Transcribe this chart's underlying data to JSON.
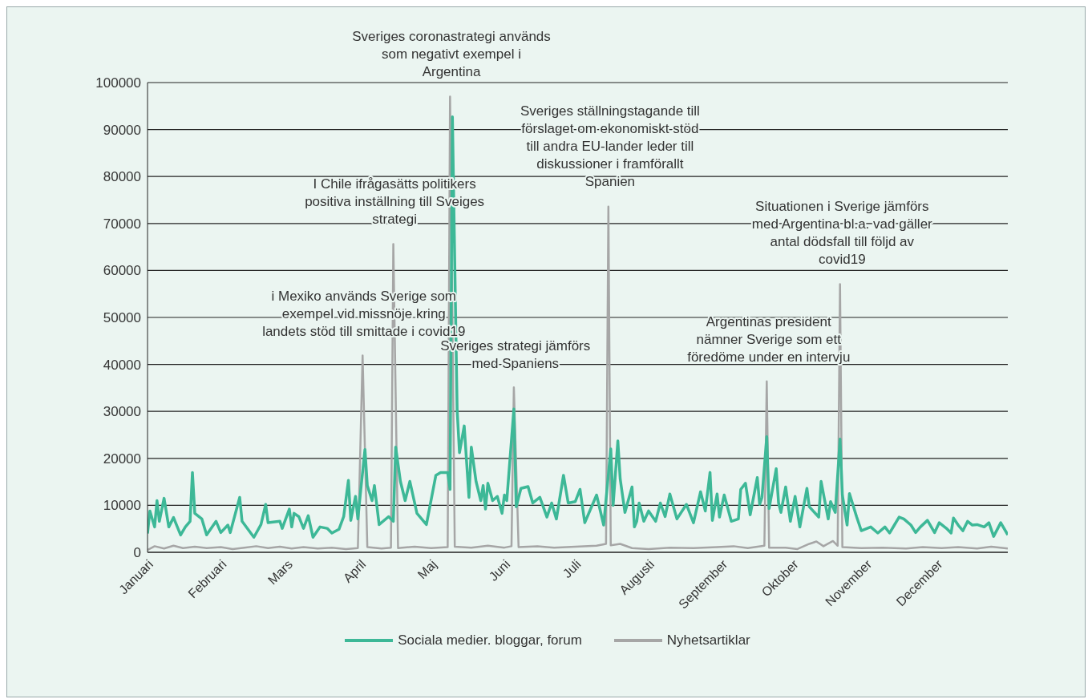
{
  "chart_data": {
    "type": "line",
    "xlim": [
      "--01-01",
      "--12-31"
    ],
    "xticks": [
      {
        "value": "--01-01",
        "label": "Januari"
      },
      {
        "value": "--02-01",
        "label": "Februari"
      },
      {
        "value": "--03-01",
        "label": "Mars"
      },
      {
        "value": "--04-01",
        "label": "April"
      },
      {
        "value": "--05-01",
        "label": "Maj"
      },
      {
        "value": "--06-01",
        "label": "Juni"
      },
      {
        "value": "--07-01",
        "label": "Juli"
      },
      {
        "value": "--08-01",
        "label": "Augusti"
      },
      {
        "value": "--09-01",
        "label": "September"
      },
      {
        "value": "--10-01",
        "label": "Oktober"
      },
      {
        "value": "--11-01",
        "label": "November"
      },
      {
        "value": "--12-01",
        "label": "December"
      }
    ],
    "ylim": [
      0,
      100000
    ],
    "yticks": [
      0,
      10000,
      20000,
      30000,
      40000,
      50000,
      60000,
      70000,
      80000,
      90000,
      100000
    ],
    "grid": "y",
    "legend": "bottom",
    "marker": "none",
    "line_style": "solid",
    "series": [
      {
        "name": "Sociala medier. bloggar, forum",
        "color": "#3db897",
        "x": [
          "--01-01",
          "--01-02",
          "--01-04",
          "--01-05",
          "--01-06",
          "--01-08",
          "--01-10",
          "--01-12",
          "--01-15",
          "--01-17",
          "--01-19",
          "--01-20",
          "--01-21",
          "--01-24",
          "--01-26",
          "--01-30",
          "--02-01",
          "--02-04",
          "--02-05",
          "--02-09",
          "--02-10",
          "--02-15",
          "--02-18",
          "--02-20",
          "--02-21",
          "--02-26",
          "--02-27",
          "--03-02",
          "--03-03",
          "--03-04",
          "--03-06",
          "--03-08",
          "--03-10",
          "--03-12",
          "--03-15",
          "--03-18",
          "--03-20",
          "--03-23",
          "--03-25",
          "--03-27",
          "--03-28",
          "--03-30",
          "--03-31",
          "--04-01",
          "--04-03",
          "--04-04",
          "--04-06",
          "--04-07",
          "--04-09",
          "--04-13",
          "--04-15",
          "--04-16",
          "--04-18",
          "--04-20",
          "--04-22",
          "--04-25",
          "--04-29",
          "--05-03",
          "--05-05",
          "--05-08",
          "--05-09",
          "--05-10",
          "--05-12",
          "--05-13",
          "--05-15",
          "--05-17",
          "--05-18",
          "--05-20",
          "--05-22",
          "--05-23",
          "--05-24",
          "--05-25",
          "--05-27",
          "--05-29",
          "--05-31",
          "--06-01",
          "--06-02",
          "--06-05",
          "--06-06",
          "--06-08",
          "--06-11",
          "--06-13",
          "--06-16",
          "--06-19",
          "--06-21",
          "--06-23",
          "--06-26",
          "--06-28",
          "--07-01",
          "--07-03",
          "--07-05",
          "--07-10",
          "--07-13",
          "--07-16",
          "--07-17",
          "--07-19",
          "--07-20",
          "--07-22",
          "--07-25",
          "--07-26",
          "--07-27",
          "--07-28",
          "--07-30",
          "--08-01",
          "--08-04",
          "--08-06",
          "--08-08",
          "--08-10",
          "--08-13",
          "--08-17",
          "--08-20",
          "--08-23",
          "--08-25",
          "--08-27",
          "--08-28",
          "--08-30",
          "--08-31",
          "--09-02",
          "--09-05",
          "--09-08",
          "--09-09",
          "--09-11",
          "--09-13",
          "--09-16",
          "--09-17",
          "--09-18",
          "--09-20",
          "--09-21",
          "--09-24",
          "--09-25",
          "--09-26",
          "--09-28",
          "--09-30",
          "--10-02",
          "--10-04",
          "--10-07",
          "--10-08",
          "--10-12",
          "--10-13",
          "--10-16",
          "--10-17",
          "--10-19",
          "--10-21",
          "--10-22",
          "--10-24",
          "--10-25",
          "--10-28",
          "--10-30",
          "--11-03",
          "--11-06",
          "--11-09",
          "--11-11",
          "--11-13",
          "--11-15",
          "--11-17",
          "--11-20",
          "--11-22",
          "--11-24",
          "--11-27",
          "--11-30",
          "--12-02",
          "--12-05",
          "--12-07",
          "--12-08",
          "--12-10",
          "--12-12",
          "--12-14",
          "--12-16",
          "--12-18",
          "--12-21",
          "--12-23",
          "--12-25",
          "--12-28",
          "--12-31"
        ],
        "values": [
          4000,
          8800,
          5400,
          11000,
          6600,
          11500,
          5400,
          7400,
          3700,
          5400,
          6600,
          17000,
          8300,
          7100,
          3700,
          6600,
          4200,
          5800,
          4200,
          11700,
          6600,
          3200,
          5900,
          10200,
          6300,
          6600,
          5100,
          9200,
          5400,
          8300,
          7600,
          5100,
          7800,
          3200,
          5400,
          5100,
          4100,
          4900,
          7600,
          15300,
          6800,
          11900,
          7100,
          12200,
          21900,
          14200,
          11000,
          14200,
          5900,
          7600,
          6600,
          22400,
          15100,
          11000,
          15100,
          8300,
          5900,
          16400,
          17000,
          17000,
          13400,
          92700,
          30300,
          21200,
          26900,
          11700,
          22400,
          15100,
          11000,
          14200,
          9200,
          14700,
          11000,
          11900,
          8300,
          12200,
          11000,
          30500,
          9700,
          13600,
          14000,
          10500,
          11700,
          7500,
          10500,
          7100,
          16400,
          10500,
          10800,
          13400,
          6300,
          12200,
          5800,
          22000,
          10000,
          23700,
          15600,
          8500,
          13900,
          5400,
          6600,
          10500,
          6600,
          8800,
          6600,
          10500,
          7600,
          12400,
          7100,
          10200,
          6300,
          12900,
          8800,
          17000,
          6800,
          12400,
          7500,
          12200,
          6600,
          7100,
          13400,
          14700,
          8000,
          15900,
          10200,
          11700,
          24600,
          9300,
          17800,
          10500,
          8500,
          13900,
          6600,
          11900,
          5400,
          13600,
          9700,
          7500,
          15100,
          7100,
          10800,
          8500,
          24100,
          12200,
          5800,
          12500,
          7600,
          4600,
          5400,
          4100,
          5400,
          4100,
          5800,
          7500,
          7100,
          5800,
          4200,
          5400,
          6800,
          4200,
          6300,
          5100,
          4100,
          7300,
          5800,
          4600,
          6600,
          5800,
          5900,
          5400,
          6300,
          3400,
          6300,
          3700
        ]
      },
      {
        "name": "Nyhetsartiklar",
        "color": "#a6a6a6",
        "x": [
          "--01-01",
          "--01-04",
          "--01-08",
          "--01-12",
          "--01-16",
          "--01-21",
          "--01-26",
          "--02-01",
          "--02-06",
          "--02-11",
          "--02-16",
          "--02-21",
          "--02-26",
          "--03-03",
          "--03-08",
          "--03-14",
          "--03-20",
          "--03-26",
          "--03-31",
          "--04-02",
          "--04-04",
          "--04-10",
          "--04-14",
          "--04-15",
          "--04-17",
          "--04-24",
          "--05-01",
          "--05-08",
          "--05-09",
          "--05-11",
          "--05-18",
          "--05-25",
          "--06-01",
          "--06-04",
          "--06-05",
          "--06-07",
          "--06-15",
          "--06-22",
          "--07-01",
          "--07-10",
          "--07-14",
          "--07-15",
          "--07-16",
          "--07-20",
          "--07-25",
          "--08-01",
          "--08-10",
          "--08-20",
          "--08-30",
          "--09-06",
          "--09-12",
          "--09-19",
          "--09-20",
          "--09-21",
          "--09-28",
          "--10-03",
          "--10-08",
          "--10-11",
          "--10-14",
          "--10-18",
          "--10-20",
          "--10-21",
          "--10-22",
          "--10-30",
          "--11-08",
          "--11-18",
          "--11-25",
          "--12-03",
          "--12-10",
          "--12-18",
          "--12-24",
          "--12-31"
        ],
        "values": [
          500,
          1300,
          800,
          1400,
          900,
          1200,
          900,
          1100,
          700,
          1000,
          1300,
          900,
          1200,
          800,
          1100,
          800,
          1000,
          700,
          900,
          41900,
          1100,
          800,
          1000,
          65600,
          900,
          1200,
          900,
          1100,
          97000,
          1200,
          1000,
          1400,
          1000,
          1300,
          35100,
          1100,
          1300,
          1000,
          1200,
          1400,
          1800,
          73600,
          1500,
          1800,
          900,
          700,
          1000,
          900,
          1100,
          1300,
          900,
          1400,
          36400,
          1000,
          1000,
          700,
          1800,
          2300,
          1300,
          2400,
          1400,
          57100,
          1100,
          900,
          1000,
          800,
          1100,
          900,
          1100,
          800,
          1200,
          800
        ]
      }
    ],
    "annotations": [
      {
        "text": "i Mexiko används Sverige som\nexempel vid missnöje kring\nlandets stöd till smittade i covid19",
        "x": "--04-02",
        "y": 41900
      },
      {
        "text": "I Chile ifrågasätts politikers\npositiva inställning till Sveiges\nstrategi",
        "x": "--04-15",
        "y": 65600
      },
      {
        "text": "Sveriges coronastrategi används\nsom negativt exempel i\nArgentina",
        "x": "--05-09",
        "y": 97000
      },
      {
        "text": "Sveriges strategi jämförs\nmed Spaniens",
        "x": "--06-05",
        "y": 35100
      },
      {
        "text": "Sveriges ställningstagande till\nförslaget om ekonomiskt stöd\ntill andra EU-lander leder till\ndiskussioner i framförallt\nSpanien",
        "x": "--07-15",
        "y": 73600
      },
      {
        "text": "Argentinas president\nnämner Sverige som ett\nföredöme under en intervju",
        "x": "--09-20",
        "y": 36400
      },
      {
        "text": "Situationen i Sverige jämförs\nmed Argentina  bl.a. vad gäller\nantal dödsfall till följd av\ncovid19",
        "x": "--10-21",
        "y": 57100
      }
    ]
  }
}
